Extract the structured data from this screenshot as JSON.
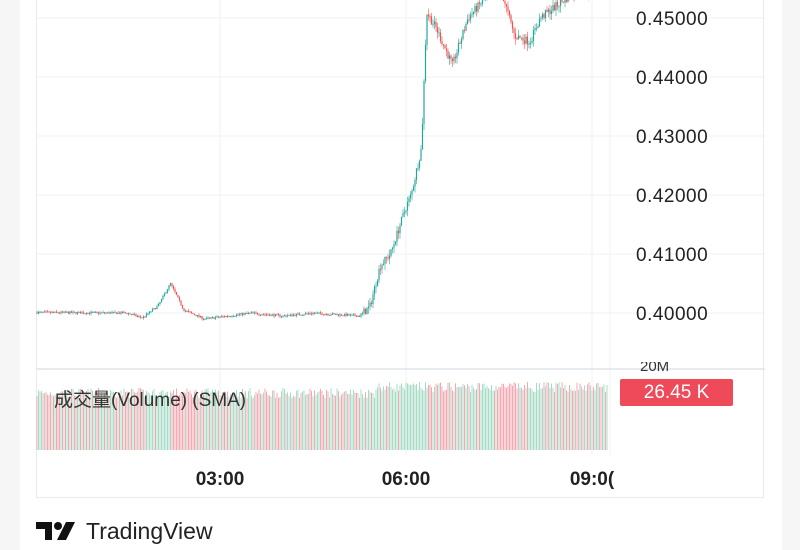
{
  "chart_data": {
    "type": "candlestick",
    "title": "",
    "price_axis": {
      "ticks": [
        "0.40000",
        "0.41000",
        "0.42000",
        "0.43000",
        "0.44000",
        "0.45000"
      ],
      "tick_values": [
        0.4,
        0.41,
        0.42,
        0.43,
        0.44,
        0.45
      ],
      "position": "right"
    },
    "time_axis": {
      "ticks": [
        "03:00",
        "06:00",
        "09:0("
      ],
      "tick_hours": [
        3,
        6,
        9
      ]
    },
    "grid": true,
    "approx_close_path": [
      {
        "t": "00:00",
        "p": 0.4001
      },
      {
        "t": "01:30",
        "p": 0.4
      },
      {
        "t": "01:45",
        "p": 0.3992
      },
      {
        "t": "02:00",
        "p": 0.4012
      },
      {
        "t": "02:12",
        "p": 0.405
      },
      {
        "t": "02:25",
        "p": 0.4005
      },
      {
        "t": "02:45",
        "p": 0.399
      },
      {
        "t": "03:30",
        "p": 0.4
      },
      {
        "t": "04:00",
        "p": 0.3995
      },
      {
        "t": "04:30",
        "p": 0.4
      },
      {
        "t": "05:15",
        "p": 0.3995
      },
      {
        "t": "05:25",
        "p": 0.401
      },
      {
        "t": "05:35",
        "p": 0.408
      },
      {
        "t": "05:45",
        "p": 0.41
      },
      {
        "t": "06:00",
        "p": 0.418
      },
      {
        "t": "06:05",
        "p": 0.42
      },
      {
        "t": "06:15",
        "p": 0.428
      },
      {
        "t": "06:20",
        "p": 0.451
      },
      {
        "t": "06:30",
        "p": 0.448
      },
      {
        "t": "06:45",
        "p": 0.442
      },
      {
        "t": "07:00",
        "p": 0.45
      },
      {
        "t": "07:30",
        "p": 0.456
      },
      {
        "t": "07:45",
        "p": 0.447
      },
      {
        "t": "08:00",
        "p": 0.446
      },
      {
        "t": "08:10",
        "p": 0.45
      },
      {
        "t": "08:40",
        "p": 0.454
      },
      {
        "t": "09:10",
        "p": 0.455
      }
    ],
    "colors": {
      "up": "#26a69a",
      "down": "#ef5350",
      "volume_up": "#a8dcc8",
      "volume_down": "#f4a9b0"
    },
    "volume": {
      "title": "成交量(Volume) (SMA)",
      "last_value": "26.45 K",
      "scale_label": "20M"
    }
  },
  "branding": {
    "logo_text": "TradingView"
  }
}
